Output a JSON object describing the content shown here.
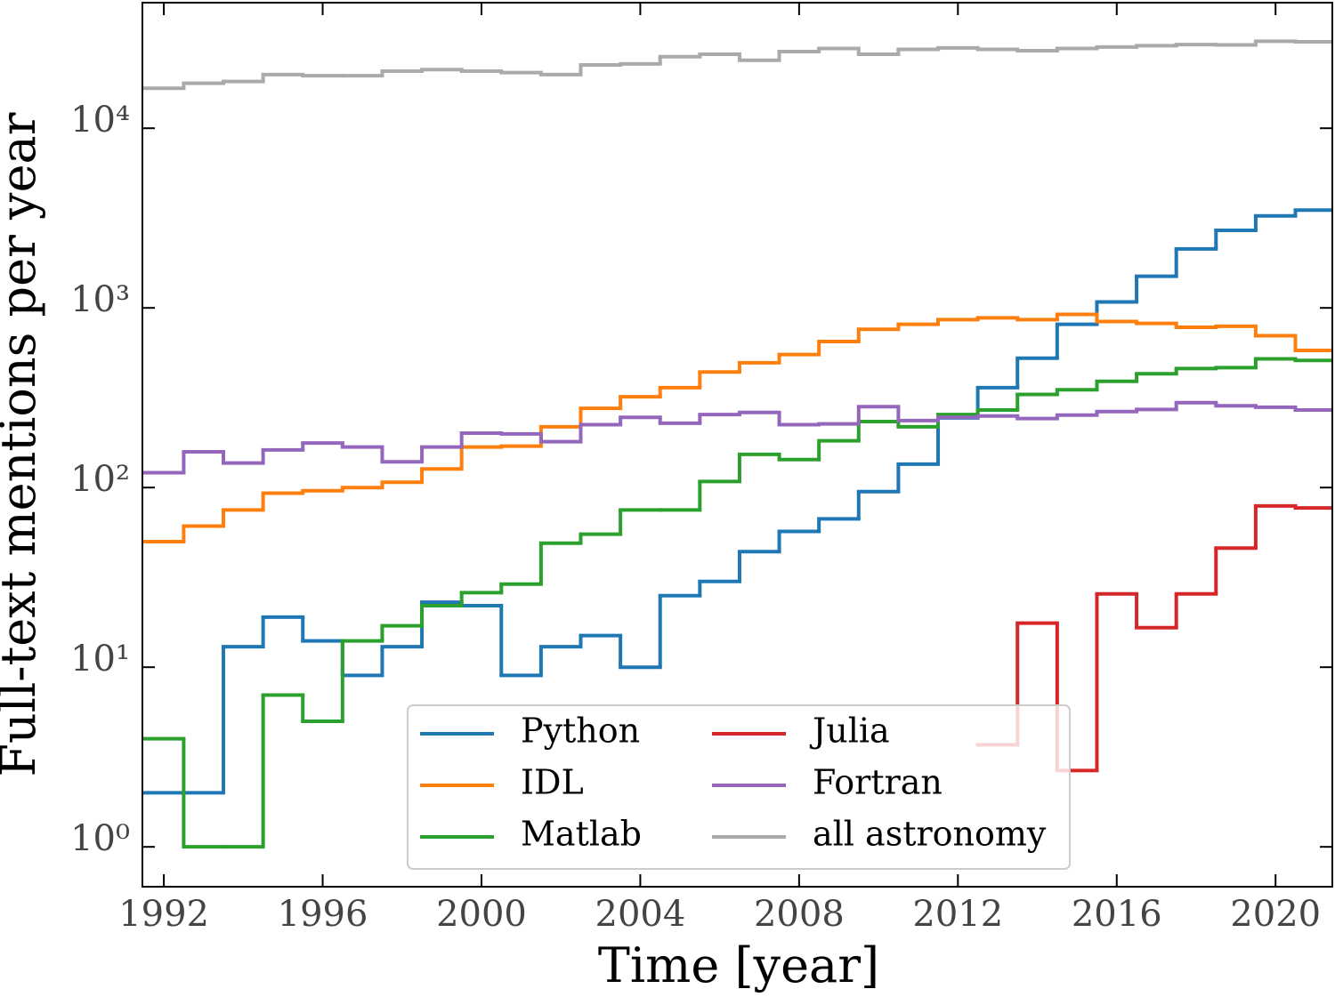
{
  "chart_data": {
    "type": "step",
    "xlabel": "Time [year]",
    "ylabel": "Full-text mentions per year",
    "x": [
      1992,
      1993,
      1994,
      1995,
      1996,
      1997,
      1998,
      1999,
      2000,
      2001,
      2002,
      2003,
      2004,
      2005,
      2006,
      2007,
      2008,
      2009,
      2010,
      2011,
      2012,
      2013,
      2014,
      2015,
      2016,
      2017,
      2018,
      2019,
      2020,
      2021
    ],
    "series": [
      {
        "name": "Python",
        "color": "#1f77b4",
        "values": [
          2,
          2,
          13,
          19,
          14,
          9,
          13,
          23,
          22,
          9,
          13,
          15,
          10,
          25,
          30,
          44,
          57,
          67,
          95,
          135,
          244,
          360,
          525,
          810,
          1080,
          1500,
          2130,
          2700,
          3250,
          3500
        ]
      },
      {
        "name": "IDL",
        "color": "#ff7f0e",
        "values": [
          50,
          61,
          75,
          93,
          96,
          100,
          107,
          127,
          168,
          170,
          218,
          276,
          320,
          360,
          440,
          495,
          550,
          650,
          760,
          810,
          860,
          880,
          860,
          920,
          840,
          820,
          780,
          790,
          700,
          580
        ]
      },
      {
        "name": "Matlab",
        "color": "#2ca02c",
        "values": [
          4,
          1,
          1,
          7,
          5,
          14,
          17,
          22,
          26,
          29,
          49,
          55,
          75,
          75,
          108,
          153,
          143,
          182,
          233,
          218,
          255,
          270,
          330,
          350,
          390,
          430,
          460,
          465,
          520,
          510
        ]
      },
      {
        "name": "Julia",
        "color": "#d62728",
        "values": [
          null,
          null,
          null,
          null,
          null,
          null,
          null,
          null,
          null,
          null,
          null,
          null,
          null,
          null,
          null,
          null,
          null,
          null,
          null,
          null,
          null,
          3.7,
          17.6,
          2.66,
          25.6,
          16.6,
          25.6,
          46,
          79,
          77
        ]
      },
      {
        "name": "Fortran",
        "color": "#9467bd",
        "values": [
          121,
          158,
          137,
          162,
          177,
          168,
          139,
          168,
          201,
          199,
          180,
          224,
          246,
          228,
          255,
          262,
          224,
          226,
          282,
          236,
          246,
          250,
          242,
          253,
          265,
          272,
          297,
          285,
          280,
          270
        ]
      },
      {
        "name": "all astronomy",
        "color": "#aaaaaa",
        "values": [
          16700,
          17800,
          18200,
          19900,
          19600,
          19600,
          20800,
          21200,
          20800,
          20400,
          19900,
          22500,
          22800,
          25000,
          25800,
          23900,
          26700,
          27800,
          25800,
          27500,
          28000,
          27500,
          27000,
          27800,
          28300,
          28800,
          29200,
          29100,
          30500,
          30300
        ]
      }
    ],
    "xlim": [
      1991.46,
      2021.43
    ],
    "xticks": [
      1992,
      1996,
      2000,
      2004,
      2008,
      2012,
      2016,
      2020
    ],
    "ylim": [
      0.6,
      50000
    ],
    "yticks": [
      {
        "value": 1,
        "label": "10⁰"
      },
      {
        "value": 10,
        "label": "10¹"
      },
      {
        "value": 100,
        "label": "10²"
      },
      {
        "value": 1000,
        "label": "10³"
      },
      {
        "value": 10000,
        "label": "10⁴"
      }
    ],
    "log_y": true,
    "legend": "lower center",
    "legend_columns": 2
  }
}
